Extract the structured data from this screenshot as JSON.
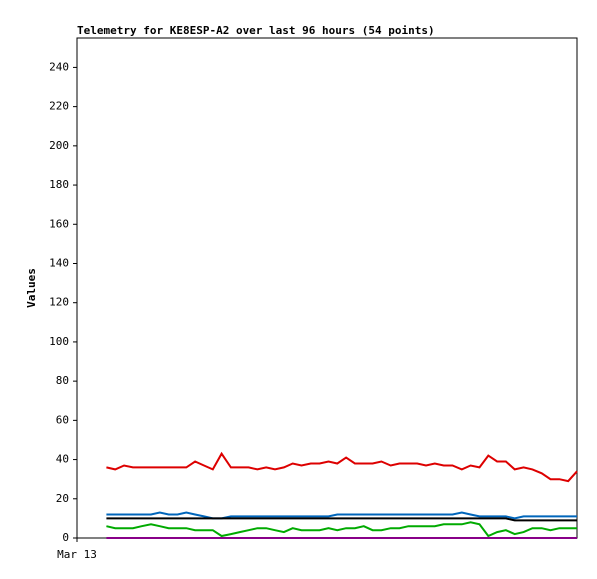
{
  "chart_data": {
    "type": "line",
    "title": "Telemetry for KE8ESP-A2 over last 96 hours (54 points)",
    "y_label": "Values",
    "xlim": [
      0,
      102
    ],
    "xticks": [
      {
        "value": 0,
        "label": "Mar 13"
      }
    ],
    "ylim": [
      0,
      255
    ],
    "yticks": [
      0,
      20,
      40,
      60,
      80,
      100,
      120,
      140,
      160,
      180,
      200,
      220,
      240
    ],
    "grid": false,
    "x": [
      6,
      7.8,
      9.6,
      11.4,
      13.2,
      15.1,
      16.9,
      18.7,
      20.5,
      22.3,
      24.1,
      25.9,
      27.7,
      29.5,
      31.4,
      33.2,
      35,
      36.8,
      38.6,
      40.4,
      42.2,
      44,
      45.8,
      47.7,
      49.5,
      51.3,
      53.1,
      54.9,
      56.7,
      58.5,
      60.3,
      62.1,
      64,
      65.8,
      67.6,
      69.4,
      71.2,
      73,
      74.8,
      76.6,
      78.5,
      80.3,
      82.1,
      83.9,
      85.7,
      87.5,
      89.3,
      91.1,
      92.9,
      94.8,
      96.6,
      98.4,
      100.2,
      102
    ],
    "series": [
      {
        "color": "#dd0000",
        "values": [
          36,
          35,
          37,
          36,
          36,
          36,
          36,
          36,
          36,
          36,
          39,
          37,
          35,
          43,
          36,
          36,
          36,
          35,
          36,
          35,
          36,
          38,
          37,
          38,
          38,
          39,
          38,
          41,
          38,
          38,
          38,
          39,
          37,
          38,
          38,
          38,
          37,
          38,
          37,
          37,
          35,
          37,
          36,
          42,
          39,
          39,
          35,
          36,
          35,
          33,
          30,
          30,
          29,
          34
        ]
      },
      {
        "color": "#0066bb",
        "values": [
          12,
          12,
          12,
          12,
          12,
          12,
          13,
          12,
          12,
          13,
          12,
          11,
          10,
          10,
          11,
          11,
          11,
          11,
          11,
          11,
          11,
          11,
          11,
          11,
          11,
          11,
          12,
          12,
          12,
          12,
          12,
          12,
          12,
          12,
          12,
          12,
          12,
          12,
          12,
          12,
          13,
          12,
          11,
          11,
          11,
          11,
          10,
          11,
          11,
          11,
          11,
          11,
          11,
          11
        ]
      },
      {
        "color": "#000000",
        "values": [
          10,
          10,
          10,
          10,
          10,
          10,
          10,
          10,
          10,
          10,
          10,
          10,
          10,
          10,
          10,
          10,
          10,
          10,
          10,
          10,
          10,
          10,
          10,
          10,
          10,
          10,
          10,
          10,
          10,
          10,
          10,
          10,
          10,
          10,
          10,
          10,
          10,
          10,
          10,
          10,
          10,
          10,
          10,
          10,
          10,
          10,
          9,
          9,
          9,
          9,
          9,
          9,
          9,
          9
        ]
      },
      {
        "color": "#00aa00",
        "values": [
          6,
          5,
          5,
          5,
          6,
          7,
          6,
          5,
          5,
          5,
          4,
          4,
          4,
          1,
          2,
          3,
          4,
          5,
          5,
          4,
          3,
          5,
          4,
          4,
          4,
          5,
          4,
          5,
          5,
          6,
          4,
          4,
          5,
          5,
          6,
          6,
          6,
          6,
          7,
          7,
          7,
          8,
          7,
          1,
          3,
          4,
          2,
          3,
          5,
          5,
          4,
          5,
          5,
          5
        ]
      },
      {
        "color": "#880088",
        "values": [
          0,
          0,
          0,
          0,
          0,
          0,
          0,
          0,
          0,
          0,
          0,
          0,
          0,
          0,
          0,
          0,
          0,
          0,
          0,
          0,
          0,
          0,
          0,
          0,
          0,
          0,
          0,
          0,
          0,
          0,
          0,
          0,
          0,
          0,
          0,
          0,
          0,
          0,
          0,
          0,
          0,
          0,
          0,
          0,
          0,
          0,
          0,
          0,
          0,
          0,
          0,
          0,
          0,
          0
        ]
      }
    ]
  }
}
